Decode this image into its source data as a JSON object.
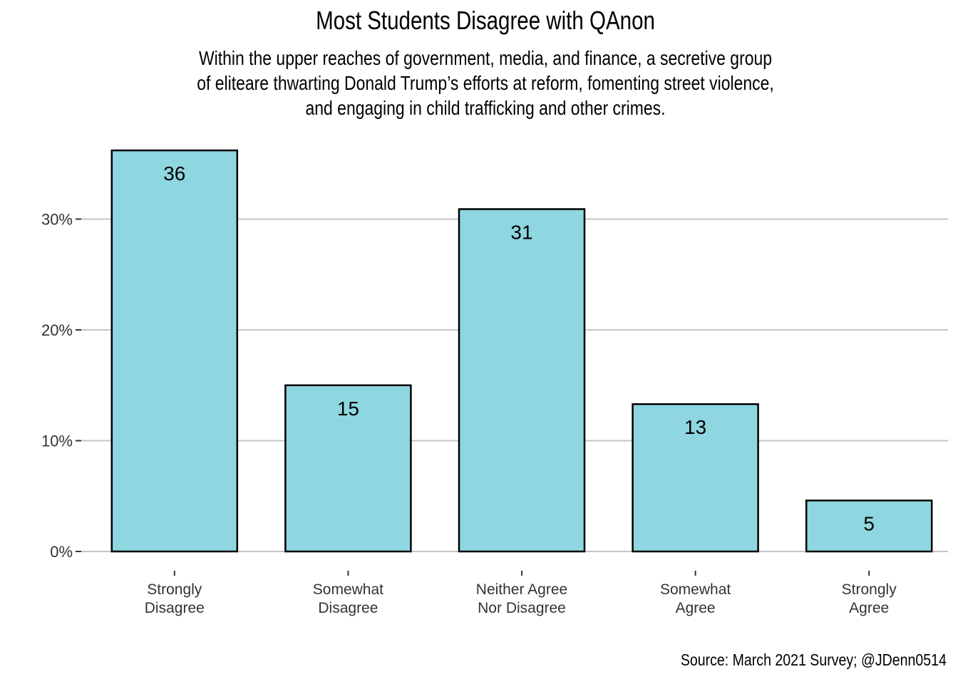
{
  "chart_data": {
    "type": "bar",
    "title": "Most Students Disagree with QAnon",
    "subtitle_lines": [
      "Within the upper reaches of government, media, and finance, a secretive group",
      "of eliteare thwarting Donald Trump’s efforts at reform, fomenting street violence,",
      "and engaging in child trafficking and other crimes."
    ],
    "caption": "Source: March 2021 Survey; @JDenn0514",
    "categories": [
      [
        "Strongly",
        "Disagree"
      ],
      [
        "Somewhat",
        "Disagree"
      ],
      [
        "Neither Agree",
        "Nor Disagree"
      ],
      [
        "Somewhat",
        "Agree"
      ],
      [
        "Strongly",
        "Agree"
      ]
    ],
    "values": [
      36.2,
      15.0,
      30.9,
      13.3,
      4.6
    ],
    "data_labels": [
      "36",
      "15",
      "31",
      "13",
      "5"
    ],
    "y_ticks": [
      0,
      10,
      20,
      30
    ],
    "y_tick_labels": [
      "0%",
      "10%",
      "20%",
      "30%"
    ],
    "ylim": [
      0,
      38
    ],
    "grid": "horizontal major",
    "bar_color": "#8fd7e0",
    "bar_outline": "#000000"
  }
}
